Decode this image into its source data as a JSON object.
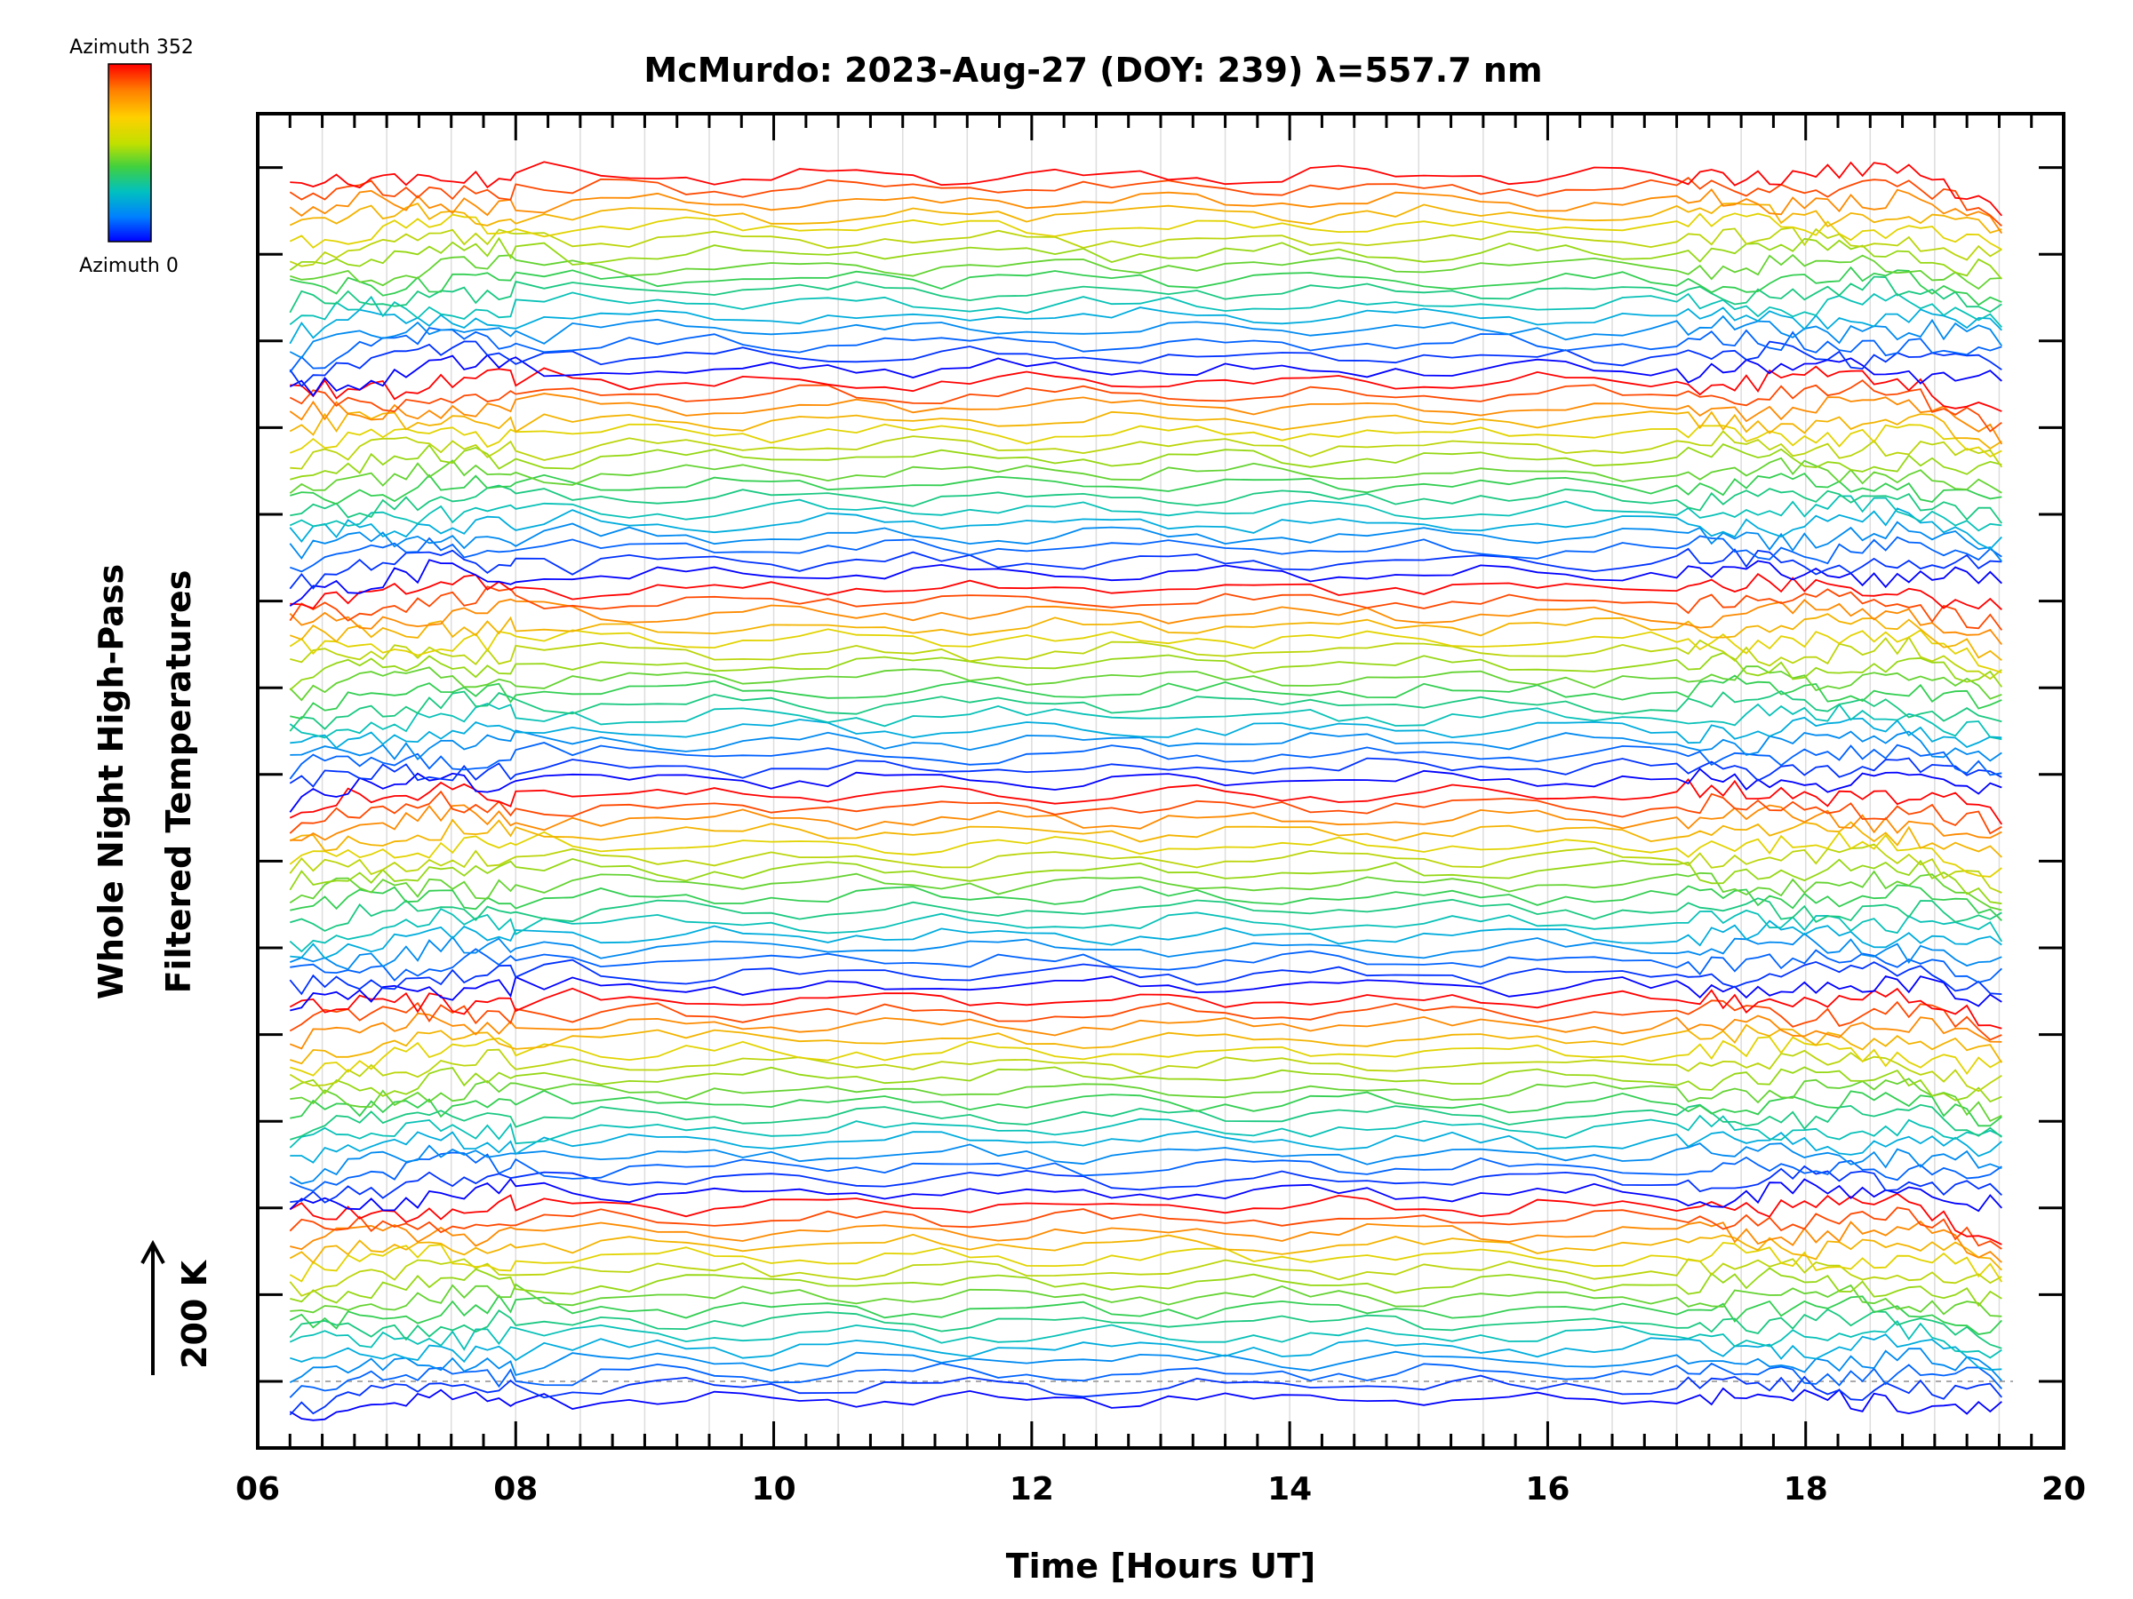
{
  "chart_data": {
    "type": "line",
    "title": "McMurdo: 2023-Aug-27 (DOY: 239) λ=557.7 nm",
    "xlabel": "Time [Hours UT]",
    "ylabel_line1": "Whole Night High-Pass",
    "ylabel_line2": "Filtered Temperatures",
    "scale_label": "200 K",
    "xlim": [
      6,
      20
    ],
    "x_ticks": [
      "06",
      "08",
      "10",
      "12",
      "14",
      "16",
      "18",
      "20"
    ],
    "time_start": 6.25,
    "time_end": 19.6,
    "num_series": 96,
    "num_stacks": 6,
    "series_per_stack": 16,
    "azimuth_range": [
      0,
      352
    ],
    "series_note": "Stacked high-pass filtered temperature traces, one per azimuth, colored from blue (Azimuth 0) to red (Azimuth 352).",
    "colorbar": {
      "top_label": "Azimuth 352",
      "bottom_label": "Azimuth 0",
      "colors": [
        "#ff0000",
        "#ff8000",
        "#ffd000",
        "#c0e000",
        "#40d040",
        "#00c0c0",
        "#00a0ff",
        "#0040ff",
        "#0000ff"
      ]
    }
  }
}
